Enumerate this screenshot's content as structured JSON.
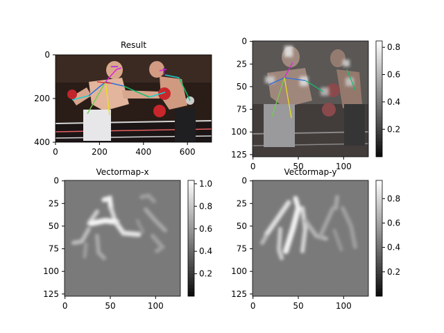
{
  "figure": {
    "panels": [
      {
        "key": "result",
        "title": "Result",
        "kind": "photo-overlay",
        "xticks": [
          "0",
          "200",
          "400",
          "600"
        ],
        "yticks": [
          "0",
          "200",
          "400"
        ],
        "colorbar": null
      },
      {
        "key": "heatmap",
        "title": "",
        "kind": "heatmap-overlay",
        "xticks": [
          "0",
          "50",
          "100"
        ],
        "yticks": [
          "0",
          "25",
          "50",
          "75",
          "100",
          "125"
        ],
        "colorbar": {
          "ticks": [
            "0.2",
            "0.4",
            "0.6",
            "0.8"
          ]
        }
      },
      {
        "key": "vx",
        "title": "Vectormap-x",
        "kind": "vectormap",
        "xticks": [
          "0",
          "50",
          "100"
        ],
        "yticks": [
          "0",
          "25",
          "50",
          "75",
          "100",
          "125"
        ],
        "colorbar": {
          "ticks": [
            "0.2",
            "0.4",
            "0.6",
            "0.8",
            "1.0"
          ]
        }
      },
      {
        "key": "vy",
        "title": "Vectormap-y",
        "kind": "vectormap",
        "xticks": [
          "0",
          "50",
          "100"
        ],
        "yticks": [
          "0",
          "25",
          "50",
          "75",
          "100",
          "125"
        ],
        "colorbar": {
          "ticks": [
            "0.2",
            "0.4",
            "0.6",
            "0.8"
          ]
        }
      }
    ]
  },
  "chart_data": [
    {
      "type": "heatmap",
      "title": "Result",
      "description_kind": "image with pose skeleton overlay",
      "xlim": [
        0,
        710
      ],
      "ylim": [
        400,
        0
      ],
      "xticks": [
        0,
        200,
        400,
        600
      ],
      "yticks": [
        0,
        200,
        400
      ]
    },
    {
      "type": "heatmap",
      "title": "",
      "xlim": [
        0,
        128
      ],
      "ylim": [
        128,
        0
      ],
      "xticks": [
        0,
        50,
        100
      ],
      "yticks": [
        0,
        25,
        50,
        75,
        100,
        125
      ],
      "colorbar": {
        "range": [
          0,
          0.85
        ],
        "ticks": [
          0.2,
          0.4,
          0.6,
          0.8
        ],
        "cmap": "gray"
      }
    },
    {
      "type": "heatmap",
      "title": "Vectormap-x",
      "xlim": [
        0,
        128
      ],
      "ylim": [
        128,
        0
      ],
      "xticks": [
        0,
        50,
        100
      ],
      "yticks": [
        0,
        25,
        50,
        75,
        100,
        125
      ],
      "colorbar": {
        "range": [
          0,
          1.03
        ],
        "ticks": [
          0.2,
          0.4,
          0.6,
          0.8,
          1.0
        ],
        "cmap": "gray"
      }
    },
    {
      "type": "heatmap",
      "title": "Vectormap-y",
      "xlim": [
        0,
        128
      ],
      "ylim": [
        128,
        0
      ],
      "xticks": [
        0,
        50,
        100
      ],
      "yticks": [
        0,
        25,
        50,
        75,
        100,
        125
      ],
      "colorbar": {
        "range": [
          0,
          0.95
        ],
        "ticks": [
          0.2,
          0.4,
          0.6,
          0.8
        ],
        "cmap": "gray"
      }
    }
  ]
}
